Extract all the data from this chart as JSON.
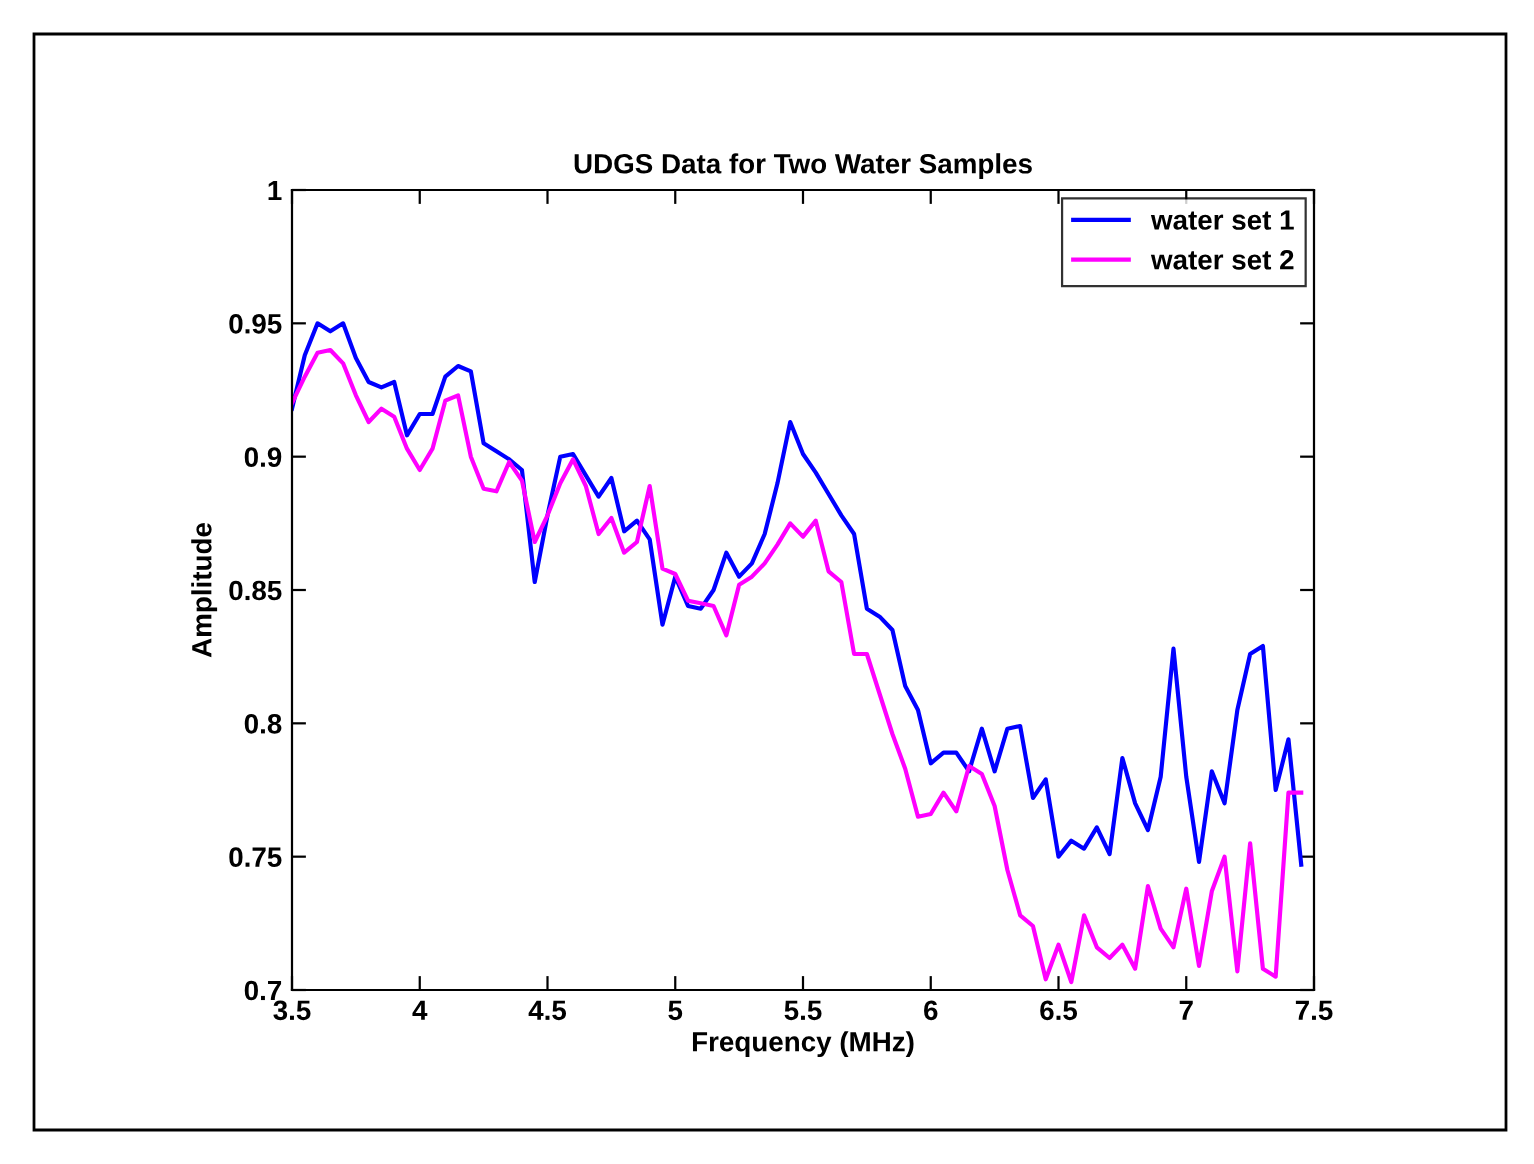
{
  "chart_data": {
    "type": "line",
    "title": "UDGS Data for Two Water Samples",
    "xlabel": "Frequency (MHz)",
    "ylabel": "Amplitude",
    "x": [
      3.5,
      3.55,
      3.6,
      3.65,
      3.7,
      3.75,
      3.8,
      3.85,
      3.9,
      3.95,
      4.0,
      4.05,
      4.1,
      4.15,
      4.2,
      4.25,
      4.3,
      4.35,
      4.4,
      4.45,
      4.5,
      4.55,
      4.6,
      4.65,
      4.7,
      4.75,
      4.8,
      4.85,
      4.9,
      4.95,
      5.0,
      5.05,
      5.1,
      5.15,
      5.2,
      5.25,
      5.3,
      5.35,
      5.4,
      5.45,
      5.5,
      5.55,
      5.6,
      5.65,
      5.7,
      5.75,
      5.8,
      5.85,
      5.9,
      5.95,
      6.0,
      6.05,
      6.1,
      6.15,
      6.2,
      6.25,
      6.3,
      6.35,
      6.4,
      6.45,
      6.5,
      6.55,
      6.6,
      6.65,
      6.7,
      6.75,
      6.8,
      6.85,
      6.9,
      6.95,
      7.0,
      7.05,
      7.1,
      7.15,
      7.2,
      7.25,
      7.3,
      7.35,
      7.4,
      7.45
    ],
    "series": [
      {
        "name": "water set 1",
        "color": "#0000ff",
        "values": [
          0.918,
          0.938,
          0.95,
          0.947,
          0.95,
          0.937,
          0.928,
          0.926,
          0.928,
          0.908,
          0.916,
          0.916,
          0.93,
          0.934,
          0.932,
          0.905,
          0.902,
          0.899,
          0.895,
          0.853,
          0.878,
          0.9,
          0.901,
          0.893,
          0.885,
          0.892,
          0.872,
          0.876,
          0.869,
          0.837,
          0.855,
          0.844,
          0.843,
          0.85,
          0.864,
          0.855,
          0.86,
          0.871,
          0.89,
          0.913,
          0.901,
          0.894,
          0.886,
          0.878,
          0.871,
          0.843,
          0.84,
          0.835,
          0.814,
          0.805,
          0.785,
          0.789,
          0.789,
          0.782,
          0.798,
          0.782,
          0.798,
          0.799,
          0.772,
          0.779,
          0.75,
          0.756,
          0.753,
          0.761,
          0.751,
          0.787,
          0.77,
          0.76,
          0.78,
          0.828,
          0.78,
          0.748,
          0.782,
          0.77,
          0.805,
          0.826,
          0.829,
          0.775,
          0.794,
          0.747
        ]
      },
      {
        "name": "water set 2",
        "color": "#ff00ff",
        "values": [
          0.92,
          0.93,
          0.939,
          0.94,
          0.935,
          0.923,
          0.913,
          0.918,
          0.915,
          0.903,
          0.895,
          0.903,
          0.921,
          0.923,
          0.9,
          0.888,
          0.887,
          0.898,
          0.891,
          0.868,
          0.878,
          0.89,
          0.899,
          0.889,
          0.871,
          0.877,
          0.864,
          0.868,
          0.889,
          0.858,
          0.856,
          0.846,
          0.845,
          0.844,
          0.833,
          0.852,
          0.855,
          0.86,
          0.867,
          0.875,
          0.87,
          0.876,
          0.857,
          0.853,
          0.826,
          0.826,
          0.811,
          0.796,
          0.783,
          0.765,
          0.766,
          0.774,
          0.767,
          0.784,
          0.781,
          0.769,
          0.745,
          0.728,
          0.724,
          0.704,
          0.717,
          0.703,
          0.728,
          0.716,
          0.712,
          0.717,
          0.708,
          0.739,
          0.723,
          0.716,
          0.738,
          0.709,
          0.737,
          0.75,
          0.707,
          0.755,
          0.708,
          0.705,
          0.774,
          0.774
        ]
      }
    ],
    "xlim": [
      3.5,
      7.5
    ],
    "xticks": [
      3.5,
      4,
      4.5,
      5,
      5.5,
      6,
      6.5,
      7,
      7.5
    ],
    "ylim": [
      0.7,
      1
    ],
    "yticks": [
      0.7,
      0.75,
      0.8,
      0.85,
      0.9,
      0.95,
      1
    ],
    "grid": false,
    "legend": "top right",
    "line_style": "solid",
    "marker": "none"
  }
}
